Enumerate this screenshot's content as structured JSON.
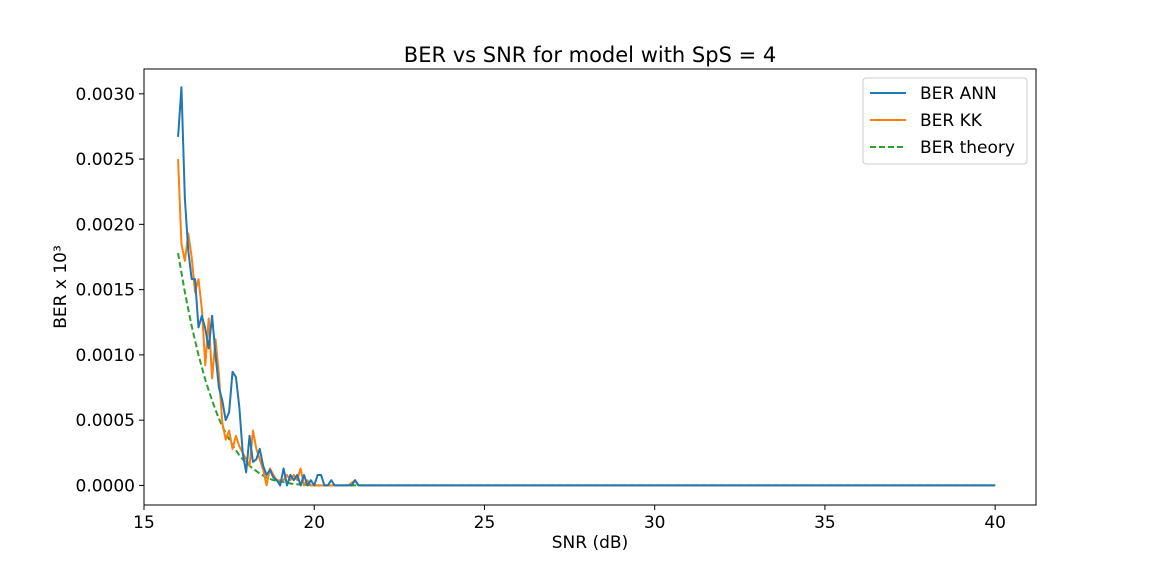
{
  "chart_data": {
    "type": "line",
    "title": "BER vs SNR for model with SpS = 4",
    "xlabel": "SNR (dB)",
    "ylabel": "BER x 10³",
    "xlim": [
      15,
      41.2
    ],
    "ylim": [
      -0.00015,
      0.00319
    ],
    "xticks": [
      15,
      20,
      25,
      30,
      35,
      40
    ],
    "xtick_labels": [
      "15",
      "20",
      "25",
      "30",
      "35",
      "40"
    ],
    "yticks": [
      0,
      0.0005,
      0.001,
      0.0015,
      0.002,
      0.0025,
      0.003
    ],
    "ytick_labels": [
      "0.0000",
      "0.0005",
      "0.0010",
      "0.0015",
      "0.0020",
      "0.0025",
      "0.0030"
    ],
    "grid": false,
    "legend_position": "top-right",
    "series": [
      {
        "name": "BER ANN",
        "color": "#1f77b4",
        "dash": "solid",
        "points": [
          [
            16.0,
            0.00267
          ],
          [
            16.1,
            0.00305
          ],
          [
            16.2,
            0.0022
          ],
          [
            16.3,
            0.0018
          ],
          [
            16.4,
            0.00158
          ],
          [
            16.5,
            0.00158
          ],
          [
            16.6,
            0.00121
          ],
          [
            16.7,
            0.0013
          ],
          [
            16.8,
            0.0012
          ],
          [
            16.9,
            0.00105
          ],
          [
            17.0,
            0.0013
          ],
          [
            17.1,
            0.001
          ],
          [
            17.2,
            0.00075
          ],
          [
            17.3,
            0.00065
          ],
          [
            17.4,
            0.0005
          ],
          [
            17.5,
            0.00056
          ],
          [
            17.6,
            0.00087
          ],
          [
            17.7,
            0.00083
          ],
          [
            17.8,
            0.0006
          ],
          [
            17.9,
            0.00025
          ],
          [
            18.0,
            0.0001
          ],
          [
            18.1,
            0.00038
          ],
          [
            18.2,
            0.00018
          ],
          [
            18.3,
            0.0002
          ],
          [
            18.4,
            0.00028
          ],
          [
            18.5,
            0.00015
          ],
          [
            18.6,
            8e-05
          ],
          [
            18.7,
            0.00012
          ],
          [
            18.8,
            6e-05
          ],
          [
            18.9,
            4e-05
          ],
          [
            19.0,
            0.0
          ],
          [
            19.1,
            0.00013
          ],
          [
            19.2,
            0.0
          ],
          [
            19.3,
            8e-05
          ],
          [
            19.4,
            4e-05
          ],
          [
            19.5,
            8e-05
          ],
          [
            19.6,
            0.0
          ],
          [
            19.7,
            8e-05
          ],
          [
            19.8,
            0.0
          ],
          [
            19.9,
            4e-05
          ],
          [
            20.0,
            0.0
          ],
          [
            20.1,
            8e-05
          ],
          [
            20.2,
            8e-05
          ],
          [
            20.3,
            0.0
          ],
          [
            20.4,
            0.0
          ],
          [
            20.5,
            4e-05
          ],
          [
            20.6,
            0.0
          ],
          [
            21.1,
            0.0
          ],
          [
            21.2,
            4e-05
          ],
          [
            21.3,
            0.0
          ],
          [
            40.0,
            0.0
          ]
        ]
      },
      {
        "name": "BER KK",
        "color": "#ff7f0e",
        "dash": "solid",
        "points": [
          [
            16.0,
            0.0025
          ],
          [
            16.1,
            0.00185
          ],
          [
            16.2,
            0.00172
          ],
          [
            16.3,
            0.00193
          ],
          [
            16.4,
            0.00175
          ],
          [
            16.5,
            0.00148
          ],
          [
            16.6,
            0.00158
          ],
          [
            16.7,
            0.00135
          ],
          [
            16.8,
            0.00092
          ],
          [
            16.9,
            0.00128
          ],
          [
            17.0,
            0.00082
          ],
          [
            17.1,
            0.00112
          ],
          [
            17.2,
            0.00085
          ],
          [
            17.3,
            0.00048
          ],
          [
            17.4,
            0.00035
          ],
          [
            17.5,
            0.00042
          ],
          [
            17.6,
            0.00028
          ],
          [
            17.7,
            0.00038
          ],
          [
            17.8,
            0.0003
          ],
          [
            17.9,
            0.00025
          ],
          [
            18.0,
            0.0002
          ],
          [
            18.1,
            0.00015
          ],
          [
            18.2,
            0.00042
          ],
          [
            18.3,
            0.00028
          ],
          [
            18.4,
            0.0002
          ],
          [
            18.5,
            0.00012
          ],
          [
            18.6,
            0.0
          ],
          [
            18.7,
            0.00013
          ],
          [
            18.8,
            8e-05
          ],
          [
            18.9,
            4e-05
          ],
          [
            19.0,
            4e-05
          ],
          [
            19.1,
            4e-05
          ],
          [
            19.2,
            8e-05
          ],
          [
            19.3,
            4e-05
          ],
          [
            19.4,
            8e-05
          ],
          [
            19.5,
            4e-05
          ],
          [
            19.6,
            0.00013
          ],
          [
            19.7,
            0.0
          ],
          [
            19.8,
            4e-05
          ],
          [
            19.9,
            0.0
          ],
          [
            20.1,
            0.0
          ],
          [
            21.0,
            0.0
          ],
          [
            21.2,
            4e-05
          ],
          [
            21.3,
            0.0
          ],
          [
            40.0,
            0.0
          ]
        ]
      },
      {
        "name": "BER theory",
        "color": "#2ca02c",
        "dash": "dashed",
        "points": [
          [
            16.0,
            0.00178
          ],
          [
            16.2,
            0.00148
          ],
          [
            16.4,
            0.00122
          ],
          [
            16.6,
            0.001
          ],
          [
            16.8,
            0.00081
          ],
          [
            17.0,
            0.00065
          ],
          [
            17.2,
            0.00051
          ],
          [
            17.4,
            0.0004
          ],
          [
            17.6,
            0.00031
          ],
          [
            17.8,
            0.00023
          ],
          [
            18.0,
            0.00017
          ],
          [
            18.2,
            0.00013
          ],
          [
            18.4,
            9e-05
          ],
          [
            18.6,
            6e-05
          ],
          [
            18.8,
            4e-05
          ],
          [
            19.0,
            3e-05
          ],
          [
            19.4,
            1e-05
          ],
          [
            20.0,
            0.0
          ],
          [
            40.0,
            0.0
          ]
        ]
      }
    ]
  }
}
